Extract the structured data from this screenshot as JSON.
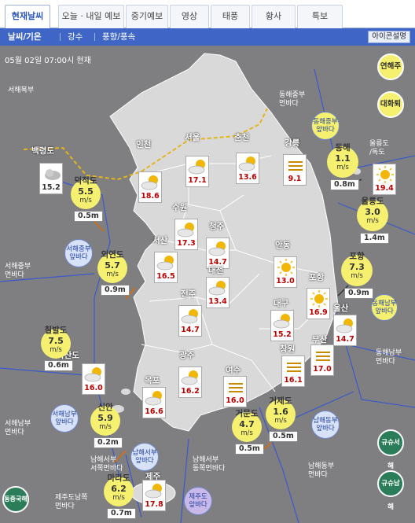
{
  "tabs": [
    "현재날씨",
    "오늘 · 내일 예보",
    "중기예보",
    "영상",
    "태풍",
    "황사",
    "특보"
  ],
  "subtabs": [
    "날씨/기온",
    "강수",
    "풍향/풍속"
  ],
  "icon_explain": "아이콘설명",
  "timestamp": "05월 02일 07:00시 현재",
  "buttons": {
    "tide": "연해주",
    "tsushima": "대화퇴"
  },
  "green": {
    "east_china": "동중국해",
    "gyushu_w": "규슈서해",
    "gyushu_s": "규슈남해"
  },
  "seas": {
    "nw": "서해북부",
    "wc": "서해중부\n먼바다",
    "ws": "서해남부\n먼바다",
    "ec": "동해중부\n먼바다",
    "es": "동해남부\n먼바다",
    "sw": "남해서부\n서쪽먼바다",
    "se": "남해서부\n동쪽먼바다",
    "sfar": "남해동부\n먼바다",
    "jeju": "제주도남쪽\n먼바다",
    "ne": "동해중부\n먼바다"
  },
  "blue": {
    "wcin": "서해중부\n앞바다",
    "wsin": "서해남부\n앞바다",
    "ecin": "동해중부\n앞바다",
    "esin": "동해남부\n앞바다",
    "swin": "남해서부\n앞바다",
    "sein": "남해동부\n앞바다",
    "jejuin": "제주도\n앞바다",
    "ulleung": "울릉도\n/독도"
  },
  "cities": [
    {
      "name": "백령도",
      "temp": "15.2",
      "gray": true
    },
    {
      "name": "인천",
      "temp": "18.6"
    },
    {
      "name": "서울",
      "temp": "17.1"
    },
    {
      "name": "춘천",
      "temp": "13.6"
    },
    {
      "name": "강릉",
      "temp": "9.1"
    },
    {
      "name": "수원",
      "temp": "17.3"
    },
    {
      "name": "청주",
      "temp": "14.7"
    },
    {
      "name": "서산",
      "temp": "16.5"
    },
    {
      "name": "안동",
      "temp": "13.0"
    },
    {
      "name": "대전",
      "temp": "13.4"
    },
    {
      "name": "포항",
      "temp": "16.9"
    },
    {
      "name": "전주",
      "temp": "14.7"
    },
    {
      "name": "대구",
      "temp": "15.2"
    },
    {
      "name": "울산",
      "temp": "14.7"
    },
    {
      "name": "흑산도",
      "temp": "16.0"
    },
    {
      "name": "광주",
      "temp": "16.2"
    },
    {
      "name": "부산",
      "temp": "17.0"
    },
    {
      "name": "창원",
      "temp": "16.1"
    },
    {
      "name": "목포",
      "temp": "16.6"
    },
    {
      "name": "여수",
      "temp": "16.0"
    },
    {
      "name": "제주",
      "temp": "17.8"
    },
    {
      "name": "울릉도",
      "temp": "19.4"
    }
  ],
  "winds": [
    {
      "name": "덕적도",
      "speed": "5.5",
      "wave": "0.5m"
    },
    {
      "name": "외연도",
      "speed": "5.7",
      "wave": "0.9m"
    },
    {
      "name": "칠발도",
      "speed": "7.5",
      "wave": "0.6m"
    },
    {
      "name": "신안",
      "speed": "5.9",
      "wave": "0.2m"
    },
    {
      "name": "마라도",
      "speed": "6.2",
      "wave": "0.7m"
    },
    {
      "name": "거문도",
      "speed": "4.7",
      "wave": "0.5m"
    },
    {
      "name": "거제도",
      "speed": "1.6",
      "wave": "0.5m"
    },
    {
      "name": "포항",
      "speed": "7.3",
      "wave": "0.9m"
    },
    {
      "name": "울릉도",
      "speed": "3.0",
      "wave": "1.4m"
    },
    {
      "name": "동해",
      "speed": "1.1",
      "wave": "0.8m"
    }
  ],
  "unit": "m/s",
  "colors": {
    "accent": "#3f66c7",
    "sea": "#7f7f82",
    "land": "#d9d9d9",
    "buoy": "#f5f070"
  }
}
